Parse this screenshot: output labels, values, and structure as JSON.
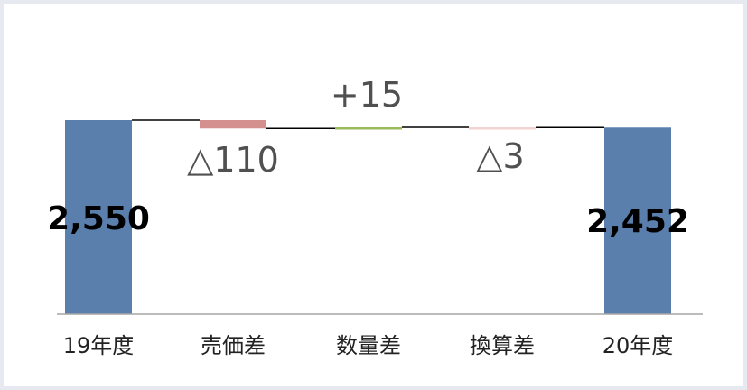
{
  "chart_data": {
    "type": "bar",
    "subtype": "waterfall",
    "categories": [
      "19年度",
      "売価差",
      "数量差",
      "換算差",
      "20年度"
    ],
    "values": [
      2550,
      -110,
      15,
      -3,
      2452
    ],
    "kinds": [
      "total",
      "delta",
      "delta",
      "delta",
      "total"
    ],
    "labels": [
      "2,550",
      "△110",
      "+15",
      "△3",
      "2,452"
    ],
    "colors": {
      "total": "#5a7fad",
      "negative": "#d48f8f",
      "positive": "#9bbb59",
      "small_negative": "#f1d3d3",
      "connector": "#000000",
      "axis": "#a6a6a6"
    },
    "grid": false,
    "legend": "none"
  }
}
